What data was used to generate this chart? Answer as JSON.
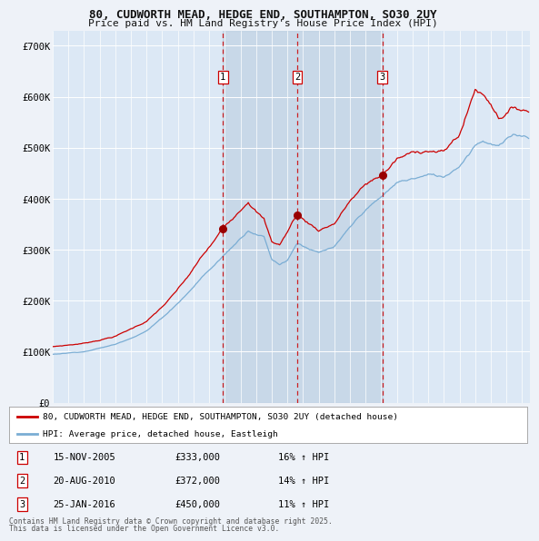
{
  "title_line1": "80, CUDWORTH MEAD, HEDGE END, SOUTHAMPTON, SO30 2UY",
  "title_line2": "Price paid vs. HM Land Registry's House Price Index (HPI)",
  "background_color": "#eef2f8",
  "plot_bg_color": "#dce8f5",
  "grid_color": "#ffffff",
  "red_line_color": "#cc0000",
  "blue_line_color": "#7aadd4",
  "sale_marker_color": "#990000",
  "vline_color": "#cc0000",
  "transactions": [
    {
      "num": 1,
      "date_str": "15-NOV-2005",
      "date_x": 2005.875,
      "price": 333000,
      "pct": "16%"
    },
    {
      "num": 2,
      "date_str": "20-AUG-2010",
      "date_x": 2010.625,
      "price": 372000,
      "pct": "14%"
    },
    {
      "num": 3,
      "date_str": "25-JAN-2016",
      "date_x": 2016.083,
      "price": 450000,
      "pct": "11%"
    }
  ],
  "ylim": [
    0,
    730000
  ],
  "xlim": [
    1995.0,
    2025.5
  ],
  "yticks": [
    0,
    100000,
    200000,
    300000,
    400000,
    500000,
    600000,
    700000
  ],
  "ytick_labels": [
    "£0",
    "£100K",
    "£200K",
    "£300K",
    "£400K",
    "£500K",
    "£600K",
    "£700K"
  ],
  "legend_entries": [
    "80, CUDWORTH MEAD, HEDGE END, SOUTHAMPTON, SO30 2UY (detached house)",
    "HPI: Average price, detached house, Eastleigh"
  ],
  "footer_line1": "Contains HM Land Registry data © Crown copyright and database right 2025.",
  "footer_line2": "This data is licensed under the Open Government Licence v3.0."
}
